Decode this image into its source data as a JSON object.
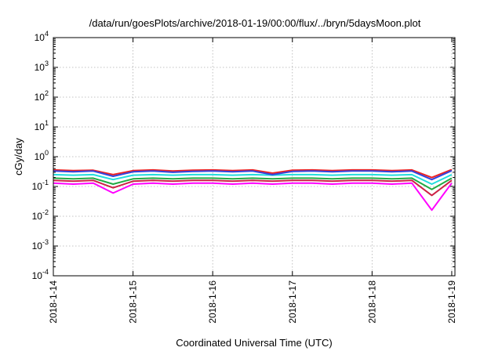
{
  "chart_data": {
    "type": "line",
    "title": "/data/run/goesPlots/archive/2018-01-19/00:00/flux/../bryn/5daysMoon.plot",
    "xlabel": "Coordinated Universal Time (UTC)",
    "ylabel": "cGy/day",
    "y_scale": "log",
    "ylim": [
      0.0001,
      10000
    ],
    "xlim": [
      "2018-01-14",
      "2018-01-19"
    ],
    "x_ticks": [
      "2018-1-14",
      "2018-1-15",
      "2018-1-16",
      "2018-1-17",
      "2018-1-18",
      "2018-1-19"
    ],
    "y_ticks": [
      {
        "base": "10",
        "exp": "-4"
      },
      {
        "base": "10",
        "exp": "-3"
      },
      {
        "base": "10",
        "exp": "-2"
      },
      {
        "base": "10",
        "exp": "-1"
      },
      {
        "base": "10",
        "exp": "0"
      },
      {
        "base": "10",
        "exp": "1"
      },
      {
        "base": "10",
        "exp": "2"
      },
      {
        "base": "10",
        "exp": "3"
      },
      {
        "base": "10",
        "exp": "4"
      }
    ],
    "grid": true,
    "x": [
      "2018-01-14T00:00",
      "2018-01-14T06:00",
      "2018-01-14T12:00",
      "2018-01-14T18:00",
      "2018-01-15T00:00",
      "2018-01-15T06:00",
      "2018-01-15T12:00",
      "2018-01-15T18:00",
      "2018-01-16T00:00",
      "2018-01-16T06:00",
      "2018-01-16T12:00",
      "2018-01-16T18:00",
      "2018-01-17T00:00",
      "2018-01-17T06:00",
      "2018-01-17T12:00",
      "2018-01-17T18:00",
      "2018-01-18T00:00",
      "2018-01-18T06:00",
      "2018-01-18T12:00",
      "2018-01-18T18:00",
      "2018-01-19T00:00"
    ],
    "series": [
      {
        "color": "#ff00ff",
        "values": [
          0.13,
          0.12,
          0.13,
          0.06,
          0.12,
          0.13,
          0.12,
          0.13,
          0.13,
          0.12,
          0.13,
          0.12,
          0.13,
          0.13,
          0.12,
          0.13,
          0.13,
          0.12,
          0.13,
          0.016,
          0.13
        ]
      },
      {
        "color": "#cc2244",
        "values": [
          0.16,
          0.15,
          0.16,
          0.09,
          0.15,
          0.16,
          0.15,
          0.16,
          0.16,
          0.15,
          0.16,
          0.15,
          0.16,
          0.16,
          0.15,
          0.16,
          0.16,
          0.15,
          0.16,
          0.05,
          0.16
        ]
      },
      {
        "color": "#22aa44",
        "values": [
          0.19,
          0.18,
          0.19,
          0.12,
          0.18,
          0.19,
          0.18,
          0.19,
          0.19,
          0.18,
          0.19,
          0.18,
          0.19,
          0.19,
          0.18,
          0.19,
          0.19,
          0.18,
          0.19,
          0.08,
          0.19
        ]
      },
      {
        "color": "#22dddd",
        "values": [
          0.25,
          0.24,
          0.25,
          0.17,
          0.24,
          0.25,
          0.24,
          0.25,
          0.25,
          0.24,
          0.25,
          0.24,
          0.25,
          0.25,
          0.24,
          0.25,
          0.25,
          0.24,
          0.25,
          0.12,
          0.25
        ]
      },
      {
        "color": "#ee2222",
        "values": [
          0.36,
          0.34,
          0.35,
          0.25,
          0.34,
          0.36,
          0.33,
          0.35,
          0.36,
          0.34,
          0.36,
          0.28,
          0.35,
          0.36,
          0.34,
          0.36,
          0.36,
          0.34,
          0.36,
          0.2,
          0.37
        ]
      },
      {
        "color": "#3344dd",
        "values": [
          0.33,
          0.31,
          0.33,
          0.22,
          0.31,
          0.33,
          0.3,
          0.32,
          0.33,
          0.31,
          0.33,
          0.25,
          0.32,
          0.33,
          0.31,
          0.33,
          0.33,
          0.31,
          0.33,
          0.17,
          0.34
        ]
      }
    ]
  }
}
